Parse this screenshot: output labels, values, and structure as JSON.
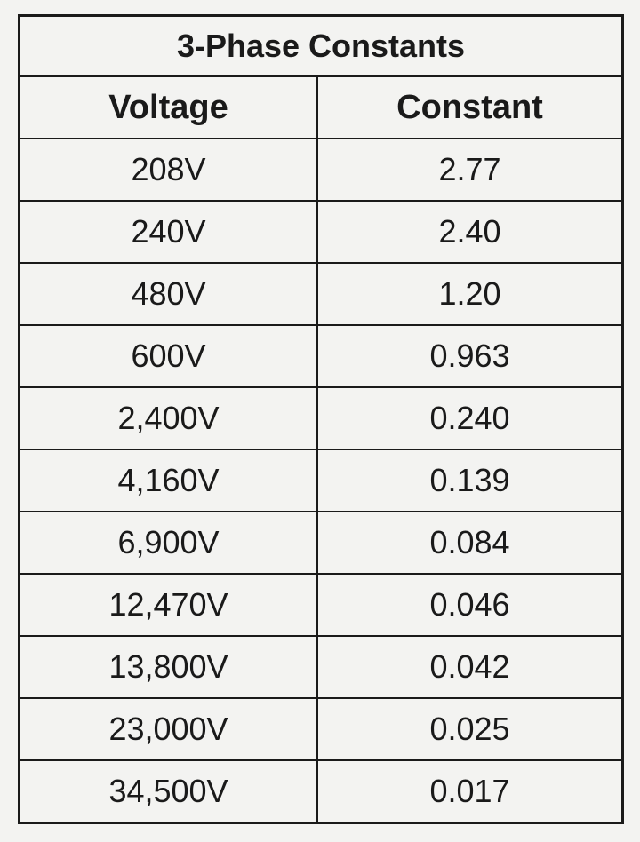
{
  "table": {
    "title": "3-Phase Constants",
    "header": [
      "Voltage",
      "Constant"
    ],
    "rows": [
      [
        "208V",
        "2.77"
      ],
      [
        "240V",
        "2.40"
      ],
      [
        "480V",
        "1.20"
      ],
      [
        "600V",
        "0.963"
      ],
      [
        "2,400V",
        "0.240"
      ],
      [
        "4,160V",
        "0.139"
      ],
      [
        "6,900V",
        "0.084"
      ],
      [
        "12,470V",
        "0.046"
      ],
      [
        "13,800V",
        "0.042"
      ],
      [
        "23,000V",
        "0.025"
      ],
      [
        "34,500V",
        "0.017"
      ]
    ]
  }
}
